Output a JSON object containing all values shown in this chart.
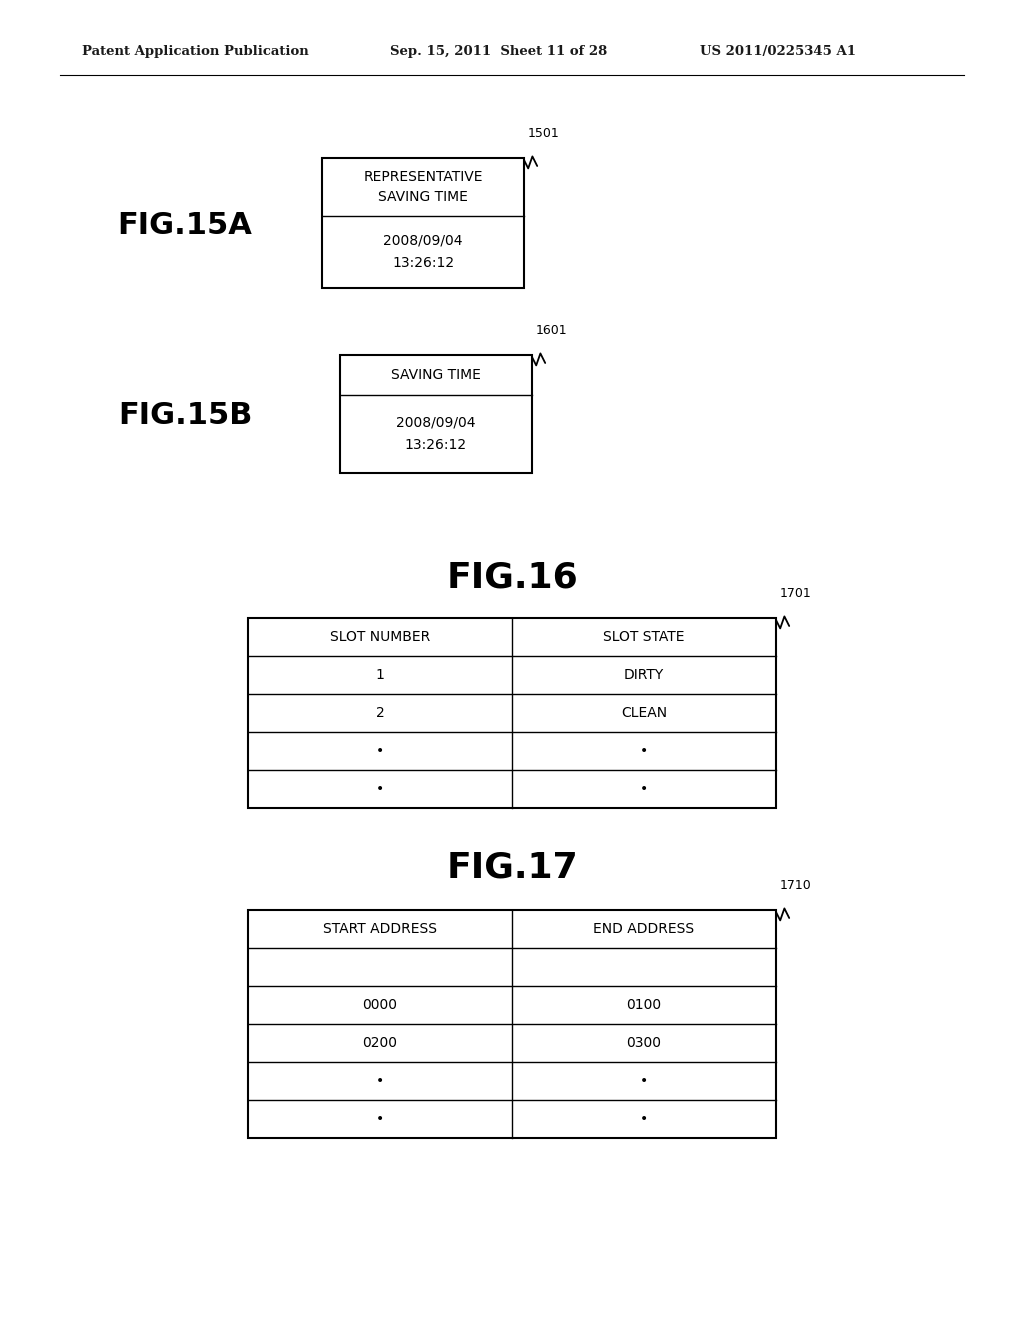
{
  "bg_color": "#ffffff",
  "header_left": "Patent Application Publication",
  "header_mid": "Sep. 15, 2011  Sheet 11 of 28",
  "header_right": "US 2011/0225345 A1",
  "fig15a_label": "FIG.15A",
  "fig15b_label": "FIG.15B",
  "fig16_label": "FIG.16",
  "fig17_label": "FIG.17",
  "fig15a_ref": "1501",
  "fig15b_ref": "1601",
  "fig16_ref": "1701",
  "fig17_ref": "1710",
  "fig15a_header": "REPRESENTATIVE\nSAVING TIME",
  "fig15a_data": "2008/09/04\n13:26:12",
  "fig15b_header": "SAVING TIME",
  "fig15b_data": "2008/09/04\n13:26:12",
  "fig16_col1": "SLOT NUMBER",
  "fig16_col2": "SLOT STATE",
  "fig16_rows": [
    [
      "1",
      "DIRTY"
    ],
    [
      "2",
      "CLEAN"
    ],
    [
      "•",
      "•"
    ],
    [
      "•",
      "•"
    ]
  ],
  "fig17_col1": "START ADDRESS",
  "fig17_col2": "END ADDRESS",
  "fig17_rows": [
    [
      "",
      ""
    ],
    [
      "0000",
      "0100"
    ],
    [
      "0200",
      "0300"
    ],
    [
      "•",
      "•"
    ],
    [
      "•",
      "•"
    ]
  ]
}
